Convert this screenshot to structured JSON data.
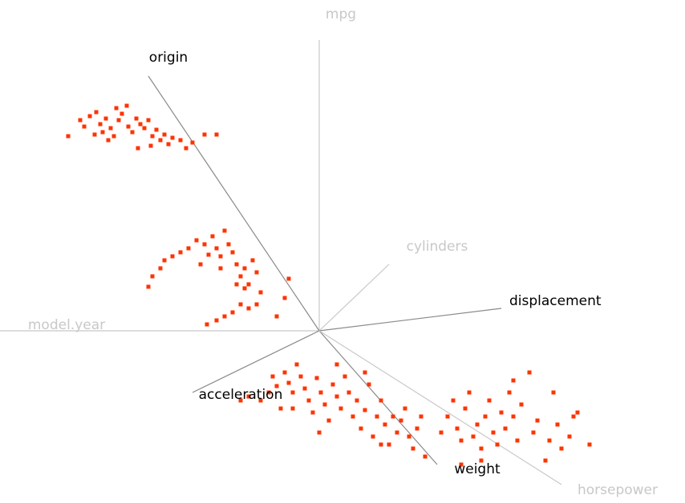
{
  "chart_data": {
    "type": "scatter",
    "color": "#ff3300",
    "xlim": [
      -3.98,
      4.56
    ],
    "ylim": [
      -2.11,
      4.13
    ],
    "axes": [
      {
        "name": "mpg",
        "x": 0,
        "y": 3.63,
        "color": "#c8c8c8"
      },
      {
        "name": "origin",
        "x": -2.13,
        "y": 3.18,
        "color": "#000000"
      },
      {
        "name": "cylinders",
        "x": 0.87,
        "y": 0.83,
        "color": "#c8c8c8"
      },
      {
        "name": "displacement",
        "x": 2.27,
        "y": 0.28,
        "color": "#000000"
      },
      {
        "name": "model.year",
        "x": -3.98,
        "y": 0,
        "color": "#c8c8c8"
      },
      {
        "name": "acceleration",
        "x": -1.58,
        "y": -0.77,
        "color": "#000000"
      },
      {
        "name": "weight",
        "x": 1.47,
        "y": -1.67,
        "color": "#000000"
      },
      {
        "name": "horsepower",
        "x": 3.02,
        "y": -1.92,
        "color": "#c8c8c8"
      }
    ],
    "x": [
      -3.13,
      -2.98,
      -2.93,
      -2.86,
      -2.78,
      -2.73,
      -2.7,
      -2.66,
      -2.6,
      -2.56,
      -2.5,
      -2.46,
      -2.4,
      -2.38,
      -2.33,
      -2.28,
      -2.23,
      -2.18,
      -2.13,
      -2.08,
      -2.03,
      -1.98,
      -1.93,
      -1.88,
      -1.83,
      -1.73,
      -1.66,
      -1.58,
      -1.43,
      -1.28,
      -2.8,
      -2.26,
      -2.53,
      -2.63,
      -2.1,
      -2.13,
      -2.08,
      -1.98,
      -1.93,
      -1.83,
      -1.73,
      -1.63,
      -1.53,
      -1.43,
      -1.38,
      -1.33,
      -1.28,
      -1.23,
      -1.18,
      -1.13,
      -1.08,
      -1.03,
      -0.98,
      -0.93,
      -0.88,
      -0.83,
      -0.78,
      -0.73,
      -0.78,
      -0.88,
      -0.98,
      -1.08,
      -1.18,
      -1.28,
      -1.4,
      -0.93,
      -1.03,
      -0.38,
      -0.43,
      -0.53,
      -1.23,
      -1.48,
      -0.98,
      -0.88,
      -0.73,
      -0.63,
      -0.58,
      -0.53,
      -0.48,
      -0.43,
      -0.38,
      -0.33,
      -0.28,
      -0.23,
      -0.18,
      -0.13,
      -0.08,
      -0.03,
      0.02,
      0.07,
      0.12,
      0.17,
      0.22,
      0.27,
      0.32,
      0.37,
      0.42,
      0.47,
      0.52,
      0.57,
      0.62,
      0.67,
      0.72,
      0.77,
      0.82,
      0.87,
      0.92,
      0.97,
      1.02,
      1.07,
      1.12,
      1.17,
      1.22,
      1.27,
      1.32,
      0.0,
      -0.33,
      0.22,
      0.57,
      0.77,
      1.52,
      1.6,
      1.67,
      1.72,
      1.77,
      1.82,
      1.87,
      1.92,
      1.97,
      2.02,
      2.07,
      2.12,
      2.17,
      2.22,
      2.27,
      2.32,
      2.37,
      2.42,
      2.47,
      2.52,
      2.62,
      2.67,
      2.72,
      2.82,
      2.87,
      2.92,
      2.97,
      3.02,
      3.12,
      3.17,
      3.22,
      3.37,
      2.02,
      1.77,
      2.42
    ],
    "y": [
      2.43,
      2.63,
      2.55,
      2.68,
      2.73,
      2.58,
      2.48,
      2.65,
      2.53,
      2.43,
      2.63,
      2.71,
      2.81,
      2.55,
      2.48,
      2.65,
      2.58,
      2.53,
      2.63,
      2.43,
      2.51,
      2.38,
      2.45,
      2.33,
      2.41,
      2.38,
      2.28,
      2.35,
      2.45,
      2.45,
      2.45,
      2.28,
      2.78,
      2.38,
      2.31,
      0.55,
      0.68,
      0.78,
      0.88,
      0.93,
      0.98,
      1.03,
      1.13,
      1.08,
      0.95,
      1.18,
      1.03,
      0.93,
      1.25,
      1.08,
      0.98,
      0.83,
      0.68,
      0.78,
      0.58,
      0.88,
      0.73,
      0.48,
      0.33,
      0.28,
      0.33,
      0.23,
      0.18,
      0.13,
      0.08,
      0.53,
      0.58,
      0.65,
      0.41,
      0.18,
      0.78,
      0.83,
      -0.87,
      -0.82,
      -0.87,
      -0.77,
      -0.57,
      -0.69,
      -0.97,
      -0.52,
      -0.65,
      -0.77,
      -0.42,
      -0.57,
      -0.72,
      -0.87,
      -1.02,
      -0.59,
      -0.77,
      -0.92,
      -1.12,
      -0.67,
      -0.82,
      -0.97,
      -0.57,
      -0.77,
      -1.07,
      -0.87,
      -1.22,
      -0.99,
      -0.67,
      -1.32,
      -1.07,
      -0.87,
      -1.17,
      -1.42,
      -1.07,
      -1.27,
      -1.12,
      -0.97,
      -1.32,
      -1.47,
      -1.22,
      -1.07,
      -1.57,
      -1.27,
      -0.97,
      -0.42,
      -0.52,
      -1.42,
      -1.27,
      -1.07,
      -0.87,
      -1.22,
      -1.37,
      -0.97,
      -0.77,
      -1.32,
      -1.17,
      -1.47,
      -1.07,
      -0.87,
      -1.27,
      -1.42,
      -1.02,
      -1.22,
      -0.77,
      -1.07,
      -1.37,
      -0.92,
      -0.52,
      -1.27,
      -1.12,
      -1.62,
      -1.37,
      -0.77,
      -1.17,
      -1.47,
      -1.32,
      -1.07,
      -1.02,
      -1.42,
      -1.62,
      -1.67,
      -0.62
    ]
  }
}
